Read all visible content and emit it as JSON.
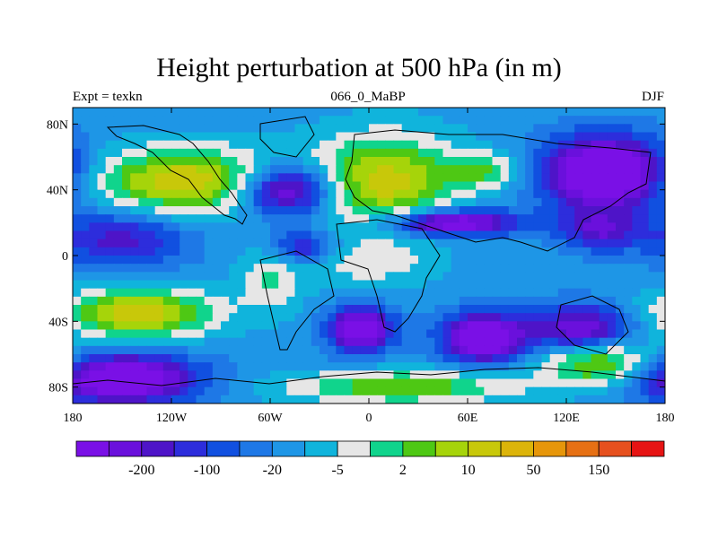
{
  "title": "Height perturbation at 500 hPa (in m)",
  "subtitle_left": "Expt = texkn",
  "subtitle_center": "066_0_MaBP",
  "subtitle_right": "DJF",
  "chart_data": {
    "type": "heatmap",
    "title": "Height perturbation at 500 hPa (in m)",
    "x_ticks": [
      {
        "value": -180,
        "label": "180"
      },
      {
        "value": -120,
        "label": "120W"
      },
      {
        "value": -60,
        "label": "60W"
      },
      {
        "value": 0,
        "label": "0"
      },
      {
        "value": 60,
        "label": "60E"
      },
      {
        "value": 120,
        "label": "120E"
      },
      {
        "value": 180,
        "label": "180"
      }
    ],
    "y_ticks": [
      {
        "value": 80,
        "label": "80N"
      },
      {
        "value": 40,
        "label": "40N"
      },
      {
        "value": 0,
        "label": "0"
      },
      {
        "value": -40,
        "label": "40S"
      },
      {
        "value": -80,
        "label": "80S"
      }
    ],
    "xlim": [
      -180,
      180
    ],
    "ylim": [
      -90,
      90
    ],
    "colorbar": {
      "colors": [
        "#7a10e6",
        "#6a10dc",
        "#4e14c8",
        "#2d2ddc",
        "#1150e0",
        "#1e78e6",
        "#1e96e6",
        "#10b4dc",
        "#e6e6e6",
        "#10d48c",
        "#4ec814",
        "#a6d40a",
        "#c8c80a",
        "#dcb40a",
        "#e6960a",
        "#e67014",
        "#e6501e",
        "#e61414"
      ],
      "labels": [
        {
          "after_index": 1,
          "text": "-200"
        },
        {
          "after_index": 3,
          "text": "-100"
        },
        {
          "after_index": 5,
          "text": "-20"
        },
        {
          "after_index": 7,
          "text": "-5"
        },
        {
          "after_index": 9,
          "text": "2"
        },
        {
          "after_index": 11,
          "text": "10"
        },
        {
          "after_index": 13,
          "text": "50"
        },
        {
          "after_index": 15,
          "text": "150"
        }
      ]
    },
    "base_level": 6,
    "blobs": [
      {
        "lon": -110,
        "lat": 45,
        "rx": 62,
        "ry": 20,
        "a": 6.5
      },
      {
        "lon": 10,
        "lat": 45,
        "rx": 45,
        "ry": 28,
        "a": 6.0
      },
      {
        "lon": -50,
        "lat": 40,
        "rx": 30,
        "ry": 16,
        "a": -8.0
      },
      {
        "lon": 145,
        "lat": 50,
        "rx": 38,
        "ry": 22,
        "a": -9.0
      },
      {
        "lon": 70,
        "lat": 52,
        "rx": 22,
        "ry": 10,
        "a": 3.5
      },
      {
        "lon": 50,
        "lat": 20,
        "rx": 40,
        "ry": 8,
        "a": -7.5
      },
      {
        "lon": 140,
        "lat": 15,
        "rx": 25,
        "ry": 12,
        "a": -4.0
      },
      {
        "lon": -150,
        "lat": 10,
        "rx": 40,
        "ry": 18,
        "a": -4.0
      },
      {
        "lon": -40,
        "lat": 5,
        "rx": 20,
        "ry": 10,
        "a": -4.0
      },
      {
        "lon": -140,
        "lat": -35,
        "rx": 45,
        "ry": 15,
        "a": 6.5
      },
      {
        "lon": -150,
        "lat": -75,
        "rx": 45,
        "ry": 15,
        "a": -8.0
      },
      {
        "lon": -5,
        "lat": -45,
        "rx": 20,
        "ry": 14,
        "a": -7.0
      },
      {
        "lon": 70,
        "lat": -50,
        "rx": 25,
        "ry": 15,
        "a": -8.0
      },
      {
        "lon": 130,
        "lat": -45,
        "rx": 30,
        "ry": 15,
        "a": -6.0
      },
      {
        "lon": 140,
        "lat": -65,
        "rx": 35,
        "ry": 14,
        "a": 5.5
      },
      {
        "lon": 20,
        "lat": -80,
        "rx": 70,
        "ry": 10,
        "a": 4.5
      },
      {
        "lon": -60,
        "lat": -15,
        "rx": 20,
        "ry": 20,
        "a": 2.5
      },
      {
        "lon": 0,
        "lat": -5,
        "rx": 40,
        "ry": 15,
        "a": 2.0
      }
    ]
  }
}
